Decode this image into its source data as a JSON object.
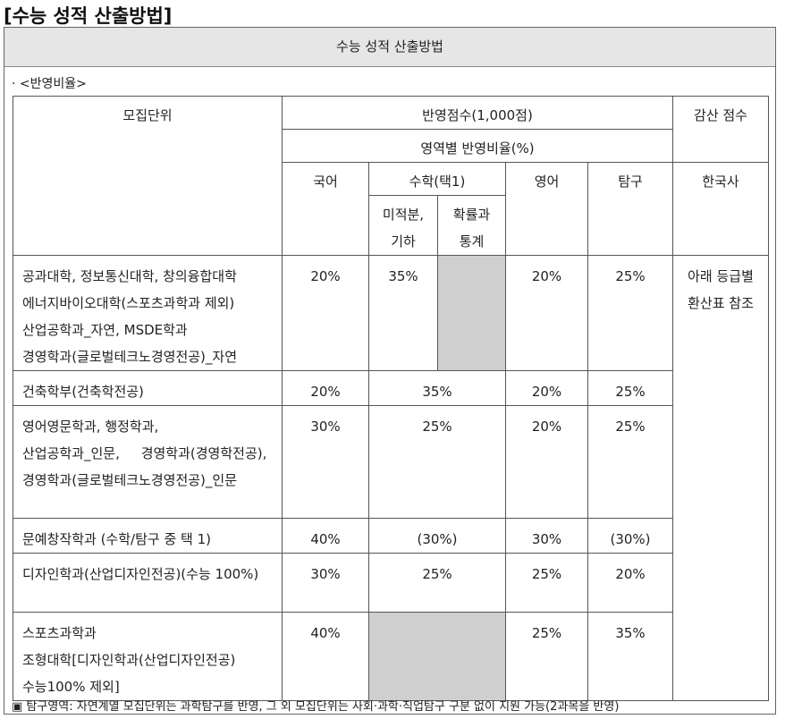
{
  "title": "[수능 성적 산출방법]",
  "box_header": "수능 성적 산출방법",
  "section_label": "· <반영비율>",
  "table": {
    "header": {
      "unit": "모집단위",
      "score": "반영점수(1,000점)",
      "deduction": "감산 점수",
      "ratio": "영역별 반영비율(%)",
      "korean": "국어",
      "math": "수학(택1)",
      "calculus": [
        "미적분,",
        "기하"
      ],
      "statistics": [
        "확률과",
        "통계"
      ],
      "english": "영어",
      "inquiry": "탐구",
      "history": "한국사"
    },
    "rows": [
      {
        "unit": [
          "공과대학, 정보통신대학, 창의융합대학",
          "에너지바이오대학(스포츠과학과 제외)",
          "산업공학과_자연, MSDE학과",
          "경영학과(글로벌테크노경영전공)_자연"
        ],
        "korean": "20%",
        "math": "35%",
        "english": "20%",
        "inquiry": "25%"
      },
      {
        "unit": [
          "건축학부(건축학전공)"
        ],
        "korean": "20%",
        "math": "35%",
        "english": "20%",
        "inquiry": "25%"
      },
      {
        "unit": [
          "영어영문학과, 행정학과,",
          "산업공학과_인문,     경영학과(경영학전공),",
          "경영학과(글로벌테크노경영전공)_인문"
        ],
        "korean": "30%",
        "math": "25%",
        "english": "20%",
        "inquiry": "25%"
      },
      {
        "unit": [
          "문예창작학과 (수학/탐구 중 택 1)"
        ],
        "korean": "40%",
        "math": "(30%)",
        "english": "30%",
        "inquiry": "(30%)"
      },
      {
        "unit": [
          "디자인학과(산업디자인전공)(수능 100%)"
        ],
        "korean": "30%",
        "math": "25%",
        "english": "25%",
        "inquiry": "20%"
      },
      {
        "unit": [
          "스포츠과학과",
          "조형대학[디자인학과(산업디자인전공)",
          "수능100% 제외]"
        ],
        "korean": "40%",
        "english": "25%",
        "inquiry": "35%"
      }
    ],
    "history_note": [
      "아래 등급별",
      "환산표 참조"
    ]
  },
  "footnote": "▣ 탐구영역: 자연계열 모집단위는 과학탐구를 반영, 그 외 모집단위는 사회·과학·직업탐구 구분 없이 지원 가능(2과목을 반영)"
}
